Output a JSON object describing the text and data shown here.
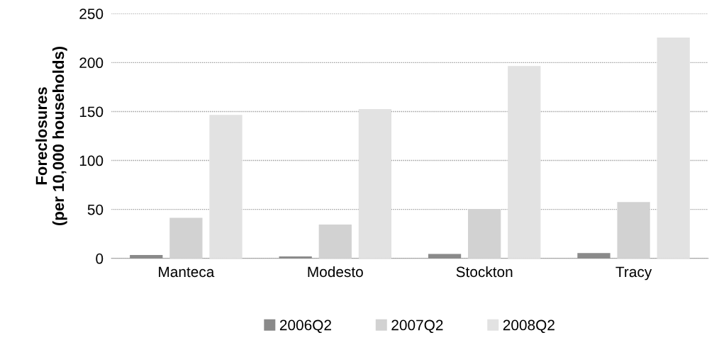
{
  "chart_data": {
    "type": "bar",
    "ylabel": "Foreclosures\n(per 10,000 households)",
    "categories": [
      "Manteca",
      "Modesto",
      "Stockton",
      "Tracy"
    ],
    "series": [
      {
        "name": "2006Q2",
        "color": "#8a8a8a",
        "values": [
          3,
          1.5,
          4,
          5
        ]
      },
      {
        "name": "2007Q2",
        "color": "#d2d2d2",
        "values": [
          41,
          34,
          50,
          57
        ]
      },
      {
        "name": "2008Q2",
        "color": "#e2e2e2",
        "values": [
          146,
          152,
          196,
          225
        ]
      }
    ],
    "ylim": [
      0,
      250
    ],
    "yticks": [
      0,
      50,
      100,
      150,
      200,
      250
    ],
    "grid": "y",
    "legend": "bottom"
  }
}
